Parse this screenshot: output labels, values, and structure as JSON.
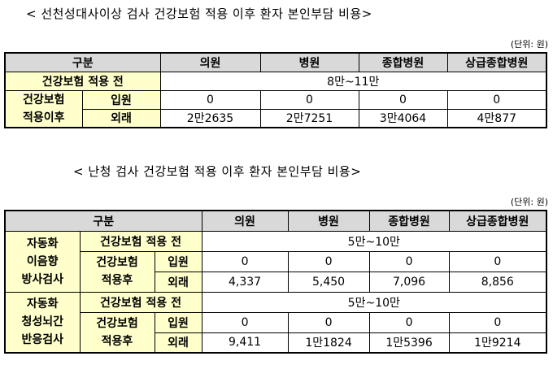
{
  "table1": {
    "title": "< 선천성대사이상 검사 건강보험 적용 이후 환자 본인부담 비용>",
    "unit": "(단위: 원)",
    "header": [
      "구분",
      "의원",
      "병원",
      "종합병원",
      "상급종합병원"
    ],
    "before_label": "건강보험 적용 전",
    "before_value": "8만~11만",
    "after_label_1": "건강보험",
    "after_label_2": "적용이후",
    "rows": [
      {
        "label": "입원",
        "values": [
          "0",
          "0",
          "0",
          "0"
        ]
      },
      {
        "label": "외래",
        "values": [
          "2만2635",
          "2만7251",
          "3만4064",
          "4만877"
        ]
      }
    ]
  },
  "table2": {
    "title": "< 난청 검사 건강보험 적용 이후 환자 본인부담 비용>",
    "unit": "(단위: 원)",
    "header": [
      "구분",
      "의원",
      "병원",
      "종합병원",
      "상급종합병원"
    ],
    "groups": [
      {
        "name_lines": [
          "자동화",
          "이음향",
          "방사검사"
        ],
        "before_label": "건강보험 적용 전",
        "before_value": "5만~10만",
        "after_label_lines": [
          "건강보험",
          "적용후"
        ],
        "rows": [
          {
            "label": "입원",
            "values": [
              "0",
              "0",
              "0",
              "0"
            ]
          },
          {
            "label": "외래",
            "values": [
              "4,337",
              "5,450",
              "7,096",
              "8,856"
            ]
          }
        ]
      },
      {
        "name_lines": [
          "자동화",
          "청성뇌간",
          "반응검사"
        ],
        "before_label": "건강보험 적용 전",
        "before_value": "5만~10만",
        "after_label_lines": [
          "건강보험",
          "적용후"
        ],
        "rows": [
          {
            "label": "입원",
            "values": [
              "0",
              "0",
              "0",
              "0"
            ]
          },
          {
            "label": "외래",
            "values": [
              "9,411",
              "1만1824",
              "1만5396",
              "1만9214"
            ]
          }
        ]
      }
    ]
  }
}
